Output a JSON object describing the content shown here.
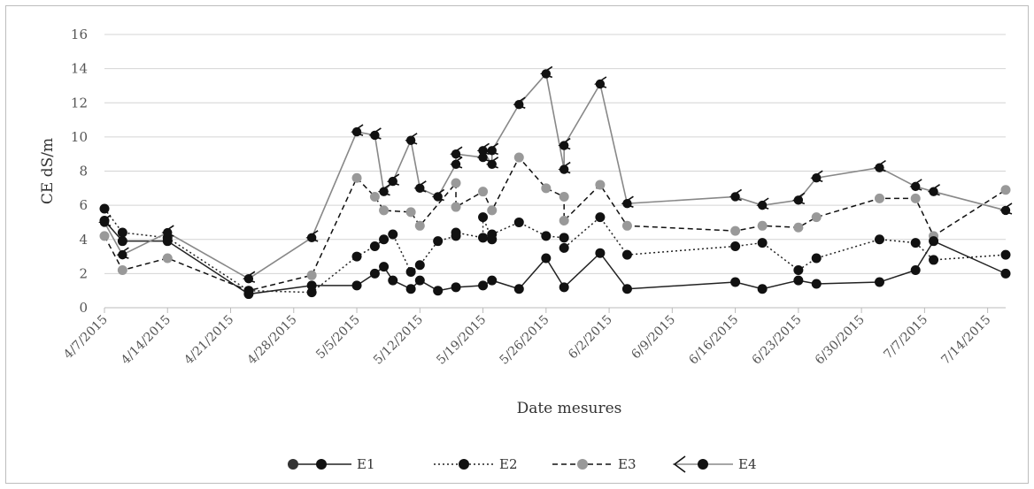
{
  "chart_data": {
    "type": "line",
    "xlabel": "Date mesures",
    "ylabel": "CE dS/m",
    "ylim": [
      0,
      16
    ],
    "yticks": [
      0,
      2,
      4,
      6,
      8,
      10,
      12,
      14,
      16
    ],
    "xlim": [
      "4/7/2015",
      "7/16/2015"
    ],
    "xticks": [
      "4/7/2015",
      "4/14/2015",
      "4/21/2015",
      "4/28/2015",
      "5/5/2015",
      "5/12/2015",
      "5/19/2015",
      "5/26/2015",
      "6/2/2015",
      "6/9/2015",
      "6/16/2015",
      "6/23/2015",
      "6/30/2015",
      "7/7/2015",
      "7/14/2015"
    ],
    "grid": "horizontal",
    "legend_position": "bottom",
    "series": [
      {
        "name": "E1",
        "style": "solid",
        "marker_color": "#111111",
        "line_color": "#222222",
        "x": [
          "4/7/2015",
          "4/9/2015",
          "4/14/2015",
          "4/23/2015",
          "4/30/2015",
          "5/5/2015",
          "5/7/2015",
          "5/8/2015",
          "5/9/2015",
          "5/11/2015",
          "5/12/2015",
          "5/14/2015",
          "5/16/2015",
          "5/19/2015",
          "5/20/2015",
          "5/23/2015",
          "5/26/2015",
          "5/28/2015",
          "6/1/2015",
          "6/4/2015",
          "6/16/2015",
          "6/19/2015",
          "6/23/2015",
          "6/25/2015",
          "7/2/2015",
          "7/6/2015",
          "7/8/2015",
          "7/16/2015"
        ],
        "y": [
          5.1,
          3.9,
          3.9,
          0.8,
          1.3,
          1.3,
          2.0,
          2.4,
          1.6,
          1.1,
          1.6,
          1.0,
          1.2,
          1.3,
          1.6,
          1.1,
          2.9,
          1.2,
          3.2,
          1.1,
          1.5,
          1.1,
          1.6,
          1.4,
          1.5,
          2.2,
          3.9,
          2.0
        ]
      },
      {
        "name": "E2",
        "style": "dotted",
        "marker_color": "#111111",
        "line_color": "#222222",
        "x": [
          "4/7/2015",
          "4/9/2015",
          "4/14/2015",
          "4/23/2015",
          "4/30/2015",
          "5/5/2015",
          "5/7/2015",
          "5/8/2015",
          "5/9/2015",
          "5/11/2015",
          "5/12/2015",
          "5/14/2015",
          "5/16/2015",
          "5/16/2015",
          "5/19/2015",
          "5/19/2015",
          "5/20/2015",
          "5/20/2015",
          "5/23/2015",
          "5/26/2015",
          "5/28/2015",
          "5/28/2015",
          "6/1/2015",
          "6/4/2015",
          "6/16/2015",
          "6/19/2015",
          "6/23/2015",
          "6/25/2015",
          "7/2/2015",
          "7/6/2015",
          "7/8/2015",
          "7/16/2015"
        ],
        "y": [
          5.8,
          4.4,
          4.1,
          1.0,
          0.9,
          3.0,
          3.6,
          4.0,
          4.3,
          2.1,
          2.5,
          3.9,
          4.2,
          4.4,
          4.1,
          5.3,
          4.0,
          4.3,
          5.0,
          4.2,
          4.1,
          3.5,
          5.3,
          3.1,
          3.6,
          3.8,
          2.2,
          2.9,
          4.0,
          3.8,
          2.8,
          3.1
        ]
      },
      {
        "name": "E3",
        "style": "dashed",
        "marker_color": "#999999",
        "line_color": "#111111",
        "x": [
          "4/7/2015",
          "4/9/2015",
          "4/14/2015",
          "4/23/2015",
          "4/30/2015",
          "5/5/2015",
          "5/7/2015",
          "5/8/2015",
          "5/11/2015",
          "5/12/2015",
          "5/16/2015",
          "5/16/2015",
          "5/19/2015",
          "5/20/2015",
          "5/23/2015",
          "5/26/2015",
          "5/28/2015",
          "5/28/2015",
          "6/1/2015",
          "6/4/2015",
          "6/16/2015",
          "6/19/2015",
          "6/23/2015",
          "6/25/2015",
          "7/2/2015",
          "7/6/2015",
          "7/8/2015",
          "7/16/2015"
        ],
        "y": [
          4.2,
          2.2,
          2.9,
          1.0,
          1.9,
          7.6,
          6.5,
          5.7,
          5.6,
          4.8,
          7.3,
          5.9,
          6.8,
          5.7,
          8.8,
          7.0,
          6.5,
          5.1,
          7.2,
          4.8,
          4.5,
          4.8,
          4.7,
          5.3,
          6.4,
          6.4,
          4.2,
          6.9
        ]
      },
      {
        "name": "E4",
        "style": "solid",
        "line_color": "#888888",
        "marker_color": "#111111",
        "x": [
          "4/7/2015",
          "4/9/2015",
          "4/14/2015",
          "4/23/2015",
          "4/30/2015",
          "5/5/2015",
          "5/7/2015",
          "5/8/2015",
          "5/9/2015",
          "5/11/2015",
          "5/12/2015",
          "5/14/2015",
          "5/16/2015",
          "5/16/2015",
          "5/19/2015",
          "5/19/2015",
          "5/20/2015",
          "5/20/2015",
          "5/23/2015",
          "5/26/2015",
          "5/28/2015",
          "5/28/2015",
          "6/1/2015",
          "6/4/2015",
          "6/16/2015",
          "6/19/2015",
          "6/23/2015",
          "6/25/2015",
          "7/2/2015",
          "7/6/2015",
          "7/8/2015",
          "7/16/2015"
        ],
        "y": [
          5.0,
          3.1,
          4.4,
          1.7,
          4.1,
          10.3,
          10.1,
          6.8,
          7.4,
          9.8,
          7.0,
          6.5,
          8.4,
          9.0,
          8.8,
          9.2,
          8.4,
          9.2,
          11.9,
          13.7,
          8.1,
          9.5,
          13.1,
          6.1,
          6.5,
          6.0,
          6.3,
          7.6,
          8.2,
          7.1,
          6.8,
          5.7
        ]
      }
    ]
  }
}
